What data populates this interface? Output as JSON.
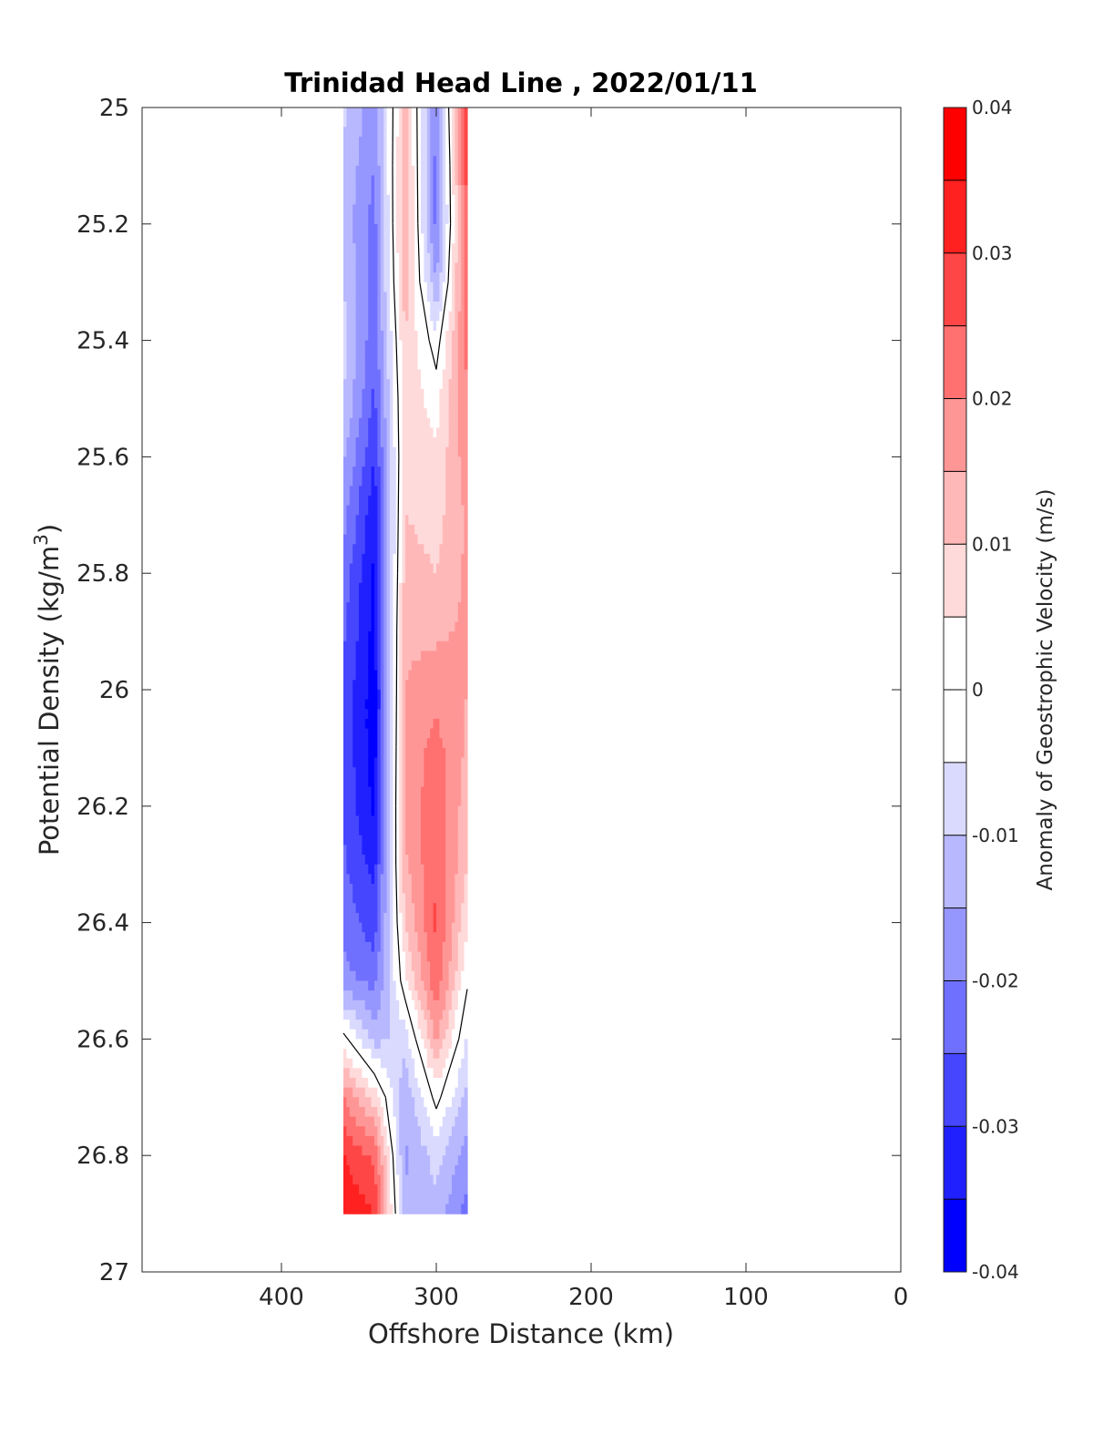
{
  "chart_data": {
    "type": "contour",
    "title": "Trinidad Head Line , 2022/01/11",
    "xlabel": "Offshore Distance (km)",
    "ylabel": "Potential Density (kg/m",
    "ylabel_superscript": "3",
    "ylabel_suffix": ")",
    "colorbar_label": "Anomaly of Geostrophic Velocity (m/s)",
    "xlim": [
      490,
      0
    ],
    "ylim": [
      25,
      27
    ],
    "x_reversed": true,
    "y_reversed": true,
    "grid": false,
    "x_ticks": [
      400,
      300,
      200,
      100,
      0
    ],
    "x_tick_labels": [
      "400",
      "300",
      "200",
      "100",
      "0"
    ],
    "y_ticks": [
      25,
      25.2,
      25.4,
      25.6,
      25.8,
      26,
      26.2,
      26.4,
      26.6,
      26.8,
      27
    ],
    "y_tick_labels": [
      "25",
      "25.2",
      "25.4",
      "25.6",
      "25.8",
      "26",
      "26.2",
      "26.4",
      "26.6",
      "26.8",
      "27"
    ],
    "colorbar": {
      "range": [
        -0.04,
        0.04
      ],
      "step": 0.005,
      "tick_values": [
        0.04,
        0.03,
        0.02,
        0.01,
        0,
        -0.01,
        -0.02,
        -0.03,
        -0.04
      ],
      "tick_labels": [
        "0.04",
        "0.03",
        "0.02",
        "0.01",
        "0",
        "-0.01",
        "-0.02",
        "-0.03",
        "-0.04"
      ],
      "colors": [
        "#0000ff",
        "#2020ff",
        "#4646ff",
        "#7070ff",
        "#9696ff",
        "#b8b8ff",
        "#dadaff",
        "#ffffff",
        "#ffffff",
        "#ffdada",
        "#ffb8b8",
        "#ff9696",
        "#ff7070",
        "#ff4646",
        "#ff2020",
        "#ff0000"
      ]
    },
    "x_stations": [
      360,
      340,
      320,
      300,
      280
    ],
    "density_levels": [
      25.0,
      25.1,
      25.2,
      25.3,
      25.4,
      25.5,
      25.6,
      25.7,
      25.8,
      25.9,
      26.0,
      26.1,
      26.2,
      26.3,
      26.4,
      26.5,
      26.6,
      26.7,
      26.8,
      26.9
    ],
    "velocity_anomaly": [
      [
        -0.009,
        -0.018,
        0.012,
        -0.02,
        0.03
      ],
      [
        -0.011,
        -0.02,
        0.014,
        -0.022,
        0.028
      ],
      [
        -0.012,
        -0.022,
        0.015,
        -0.022,
        0.026
      ],
      [
        -0.01,
        -0.022,
        0.013,
        -0.015,
        0.024
      ],
      [
        -0.008,
        -0.024,
        0.01,
        -0.003,
        0.022
      ],
      [
        -0.01,
        -0.026,
        0.008,
        0.003,
        0.02
      ],
      [
        -0.014,
        -0.03,
        0.008,
        0.006,
        0.018
      ],
      [
        -0.018,
        -0.034,
        0.01,
        0.008,
        0.016
      ],
      [
        -0.022,
        -0.036,
        0.012,
        0.01,
        0.016
      ],
      [
        -0.024,
        -0.037,
        0.014,
        0.014,
        0.016
      ],
      [
        -0.026,
        -0.038,
        0.015,
        0.018,
        0.015
      ],
      [
        -0.026,
        -0.038,
        0.016,
        0.022,
        0.014
      ],
      [
        -0.026,
        -0.036,
        0.016,
        0.024,
        0.012
      ],
      [
        -0.024,
        -0.032,
        0.014,
        0.025,
        0.01
      ],
      [
        -0.022,
        -0.028,
        0.01,
        0.026,
        0.006
      ],
      [
        -0.018,
        -0.022,
        0.004,
        0.024,
        0.001
      ],
      [
        0.002,
        -0.012,
        -0.008,
        0.016,
        -0.006
      ],
      [
        0.02,
        0.008,
        -0.014,
        0.002,
        -0.012
      ],
      [
        0.03,
        0.024,
        -0.016,
        -0.008,
        -0.018
      ],
      [
        0.034,
        0.03,
        -0.014,
        -0.012,
        -0.022
      ]
    ]
  }
}
